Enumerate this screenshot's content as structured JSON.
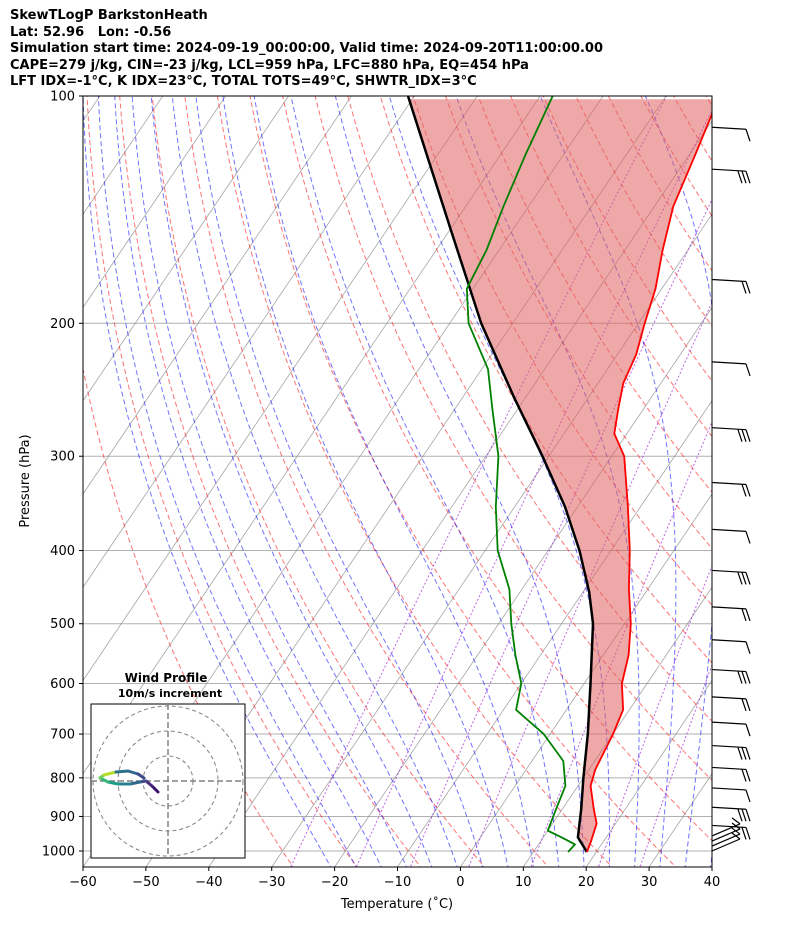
{
  "header": {
    "title": "SkewTLogP BarkstonHeath",
    "location": "Lat: 52.96   Lon: -0.56",
    "times": "Simulation start time: 2024-09-19_00:00:00, Valid time: 2024-09-20T11:00:00.00",
    "indices1": "CAPE=279 j/kg, CIN=-23 j/kg, LCL=959 hPa, LFC=880 hPa, EQ=454 hPa",
    "indices2": "LFT IDX=-1°C, K IDX=23°C, TOTAL TOTS=49°C, SHWTR_IDX=3°C"
  },
  "colors": {
    "temperature": "#ff0000",
    "dewpoint": "#008000",
    "parcel": "#000000",
    "cape_fill": "#6fa6cf",
    "cin_fill": "#e06060",
    "dry_adiabat": "#ff0000",
    "moist_adiabat": "#0000ff",
    "mixing_ratio": "#9400d3",
    "isotherm": "#808080"
  },
  "chart_data": {
    "type": "skewt",
    "title": "SkewTLogP BarkstonHeath",
    "xlabel": "Temperature (˚C)",
    "ylabel": "Pressure (hPa)",
    "xlim": [
      -60,
      40
    ],
    "ylim": [
      1050,
      100
    ],
    "x_ticks": [
      -60,
      -50,
      -40,
      -30,
      -20,
      -10,
      0,
      10,
      20,
      30,
      40
    ],
    "y_ticks": [
      100,
      200,
      300,
      400,
      500,
      600,
      700,
      800,
      900,
      1000
    ],
    "grid": true,
    "temperature": [
      {
        "p": 1003,
        "t": 18.5
      },
      {
        "p": 970,
        "t": 18.0
      },
      {
        "p": 920,
        "t": 17.0
      },
      {
        "p": 880,
        "t": 15.0
      },
      {
        "p": 820,
        "t": 12.0
      },
      {
        "p": 780,
        "t": 11.0
      },
      {
        "p": 700,
        "t": 10.0
      },
      {
        "p": 650,
        "t": 9.0
      },
      {
        "p": 600,
        "t": 6.0
      },
      {
        "p": 550,
        "t": 4.0
      },
      {
        "p": 500,
        "t": 1.0
      },
      {
        "p": 450,
        "t": -3.0
      },
      {
        "p": 400,
        "t": -7.0
      },
      {
        "p": 350,
        "t": -12.0
      },
      {
        "p": 300,
        "t": -18.0
      },
      {
        "p": 280,
        "t": -22.0
      },
      {
        "p": 260,
        "t": -24.0
      },
      {
        "p": 240,
        "t": -26.0
      },
      {
        "p": 220,
        "t": -27.0
      },
      {
        "p": 200,
        "t": -29.0
      },
      {
        "p": 180,
        "t": -31.0
      },
      {
        "p": 160,
        "t": -34.0
      },
      {
        "p": 140,
        "t": -37.0
      },
      {
        "p": 120,
        "t": -39.0
      },
      {
        "p": 100,
        "t": -41.5
      }
    ],
    "dewpoint": [
      {
        "p": 1003,
        "t": 15.5
      },
      {
        "p": 980,
        "t": 15.8
      },
      {
        "p": 960,
        "t": 13.0
      },
      {
        "p": 940,
        "t": 10.0
      },
      {
        "p": 880,
        "t": 9.0
      },
      {
        "p": 820,
        "t": 8.0
      },
      {
        "p": 760,
        "t": 5.0
      },
      {
        "p": 700,
        "t": -1.0
      },
      {
        "p": 650,
        "t": -8.0
      },
      {
        "p": 600,
        "t": -10.0
      },
      {
        "p": 550,
        "t": -14.0
      },
      {
        "p": 500,
        "t": -18.0
      },
      {
        "p": 450,
        "t": -22.0
      },
      {
        "p": 400,
        "t": -28.0
      },
      {
        "p": 350,
        "t": -33.0
      },
      {
        "p": 300,
        "t": -38.0
      },
      {
        "p": 260,
        "t": -44.0
      },
      {
        "p": 230,
        "t": -49.0
      },
      {
        "p": 200,
        "t": -57.0
      },
      {
        "p": 180,
        "t": -61.0
      },
      {
        "p": 160,
        "t": -62.0
      },
      {
        "p": 140,
        "t": -64.0
      },
      {
        "p": 120,
        "t": -66.0
      },
      {
        "p": 100,
        "t": -68.0
      }
    ],
    "parcel": [
      {
        "p": 1003,
        "t": 18.5
      },
      {
        "p": 959,
        "t": 15.5
      },
      {
        "p": 880,
        "t": 13.0
      },
      {
        "p": 800,
        "t": 10.0
      },
      {
        "p": 700,
        "t": 6.0
      },
      {
        "p": 600,
        "t": 1.0
      },
      {
        "p": 500,
        "t": -5.0
      },
      {
        "p": 454,
        "t": -9.0
      },
      {
        "p": 400,
        "t": -15.0
      },
      {
        "p": 350,
        "t": -22.0
      },
      {
        "p": 300,
        "t": -31.0
      },
      {
        "p": 250,
        "t": -42.0
      },
      {
        "p": 200,
        "t": -55.0
      },
      {
        "p": 150,
        "t": -70.0
      },
      {
        "p": 100,
        "t": -91.0
      }
    ],
    "wind_barbs_p": [
      1000,
      985,
      970,
      955,
      925,
      875,
      825,
      775,
      725,
      675,
      625,
      575,
      525,
      475,
      425,
      375,
      325,
      275,
      225,
      175,
      125,
      110
    ],
    "wind_profile": {
      "title": "Wind Profile",
      "subtitle": "10m/s increment"
    }
  }
}
